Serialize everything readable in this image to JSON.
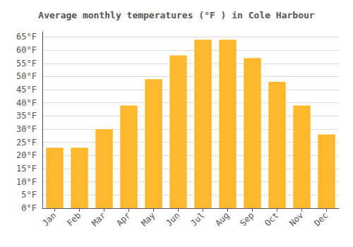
{
  "chart_data": {
    "type": "bar",
    "title": "Average monthly temperatures (°F ) in Cole Harbour",
    "categories": [
      "Jan",
      "Feb",
      "Mar",
      "Apr",
      "May",
      "Jun",
      "Jul",
      "Aug",
      "Sep",
      "Oct",
      "Nov",
      "Dec"
    ],
    "values": [
      23,
      23,
      30,
      39,
      49,
      58,
      64,
      64,
      57,
      48,
      39,
      28
    ],
    "color": "#FDB830",
    "ylim": [
      0,
      67
    ],
    "yticks": [
      {
        "value": 0,
        "label": "0°F"
      },
      {
        "value": 5,
        "label": "5°F"
      },
      {
        "value": 10,
        "label": "10°F"
      },
      {
        "value": 15,
        "label": "15°F"
      },
      {
        "value": 20,
        "label": "20°F"
      },
      {
        "value": 25,
        "label": "25°F"
      },
      {
        "value": 30,
        "label": "30°F"
      },
      {
        "value": 35,
        "label": "35°F"
      },
      {
        "value": 40,
        "label": "40°F"
      },
      {
        "value": 45,
        "label": "45°F"
      },
      {
        "value": 50,
        "label": "50°F"
      },
      {
        "value": 55,
        "label": "55°F"
      },
      {
        "value": 60,
        "label": "60°F"
      },
      {
        "value": 65,
        "label": "65°F"
      }
    ],
    "grid": true
  }
}
